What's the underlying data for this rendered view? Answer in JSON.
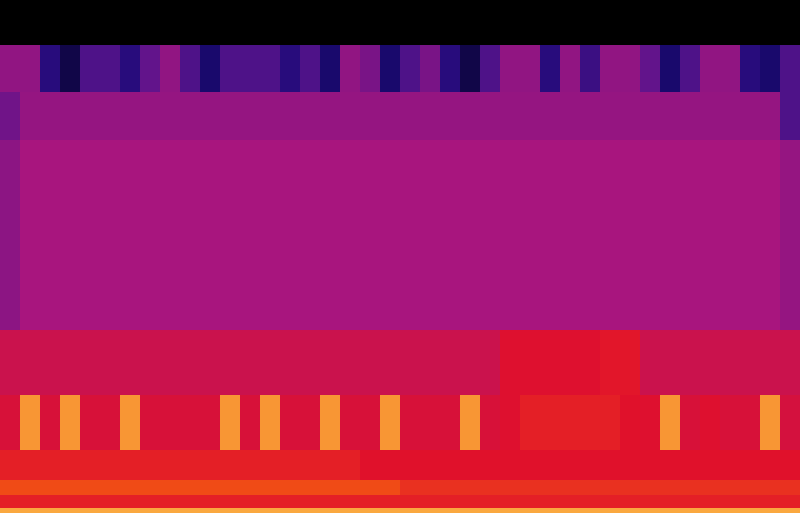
{
  "chart_data": {
    "type": "heatmap",
    "tick_labels": false,
    "xlim": [
      0,
      40
    ],
    "ylim": [
      0,
      1
    ],
    "zlim": [
      0,
      100
    ],
    "y_bins": [
      0,
      0.01,
      0.035,
      0.064,
      0.123,
      0.23,
      0.357,
      0.727,
      0.821,
      0.912,
      1
    ],
    "cells": [
      [
        92,
        92,
        92,
        92,
        92,
        92,
        92,
        92,
        92,
        92,
        92,
        92,
        92,
        92,
        92,
        92,
        92,
        92,
        92,
        92,
        92,
        92,
        92,
        92,
        92,
        92,
        92,
        92,
        92,
        92,
        92,
        92,
        92,
        92,
        92,
        92,
        92,
        92,
        92,
        92
      ],
      [
        70,
        70,
        70,
        70,
        70,
        70,
        70,
        70,
        70,
        70,
        70,
        70,
        70,
        70,
        70,
        70,
        70,
        70,
        70,
        70,
        70,
        70,
        70,
        70,
        70,
        70,
        70,
        70,
        70,
        70,
        70,
        70,
        70,
        70,
        70,
        70,
        70,
        70,
        70,
        70
      ],
      [
        80,
        80,
        80,
        80,
        80,
        80,
        80,
        80,
        80,
        80,
        80,
        80,
        80,
        80,
        80,
        80,
        80,
        80,
        80,
        80,
        74,
        74,
        74,
        74,
        74,
        74,
        74,
        74,
        74,
        74,
        74,
        74,
        74,
        74,
        74,
        74,
        74,
        74,
        74,
        74
      ],
      [
        70,
        70,
        70,
        70,
        70,
        70,
        70,
        70,
        70,
        70,
        70,
        70,
        70,
        70,
        70,
        70,
        70,
        70,
        67,
        67,
        67,
        67,
        67,
        67,
        67,
        67,
        67,
        67,
        67,
        67,
        67,
        67,
        67,
        67,
        67,
        67,
        67,
        67,
        67,
        67
      ],
      [
        64,
        90,
        64,
        90,
        64,
        64,
        90,
        64,
        64,
        64,
        64,
        90,
        64,
        90,
        64,
        64,
        90,
        64,
        64,
        90,
        64,
        64,
        64,
        90,
        64,
        66,
        70,
        70,
        70,
        70,
        70,
        67,
        66,
        90,
        64,
        66,
        64,
        64,
        90,
        63
      ],
      [
        60,
        60,
        60,
        60,
        60,
        60,
        60,
        60,
        60,
        60,
        60,
        60,
        60,
        60,
        60,
        60,
        60,
        60,
        60,
        60,
        60,
        60,
        60,
        60,
        60,
        66,
        66,
        66,
        66,
        66,
        68,
        68,
        60,
        60,
        60,
        60,
        60,
        60,
        60,
        60
      ],
      [
        44,
        50,
        50,
        50,
        50,
        50,
        50,
        50,
        50,
        50,
        50,
        50,
        50,
        50,
        50,
        50,
        50,
        50,
        50,
        50,
        50,
        50,
        50,
        50,
        50,
        50,
        50,
        50,
        50,
        50,
        50,
        50,
        50,
        50,
        50,
        50,
        50,
        50,
        50,
        46
      ],
      [
        38,
        46,
        46,
        46,
        46,
        46,
        46,
        46,
        46,
        46,
        46,
        46,
        46,
        46,
        46,
        46,
        46,
        46,
        46,
        46,
        46,
        46,
        46,
        46,
        46,
        46,
        46,
        46,
        46,
        46,
        46,
        46,
        46,
        46,
        46,
        46,
        46,
        46,
        46,
        30
      ],
      [
        45,
        45,
        20,
        10,
        30,
        30,
        20,
        35,
        45,
        30,
        15,
        30,
        30,
        30,
        20,
        30,
        15,
        45,
        40,
        15,
        30,
        40,
        20,
        10,
        30,
        45,
        45,
        20,
        45,
        25,
        45,
        45,
        35,
        15,
        30,
        45,
        45,
        20,
        15,
        30
      ],
      [
        0,
        0,
        0,
        0,
        0,
        0,
        0,
        0,
        0,
        0,
        0,
        0,
        0,
        0,
        0,
        0,
        0,
        0,
        0,
        0,
        0,
        0,
        0,
        0,
        0,
        0,
        0,
        0,
        0,
        0,
        0,
        0,
        0,
        0,
        0,
        0,
        0,
        0,
        0,
        0
      ]
    ]
  }
}
